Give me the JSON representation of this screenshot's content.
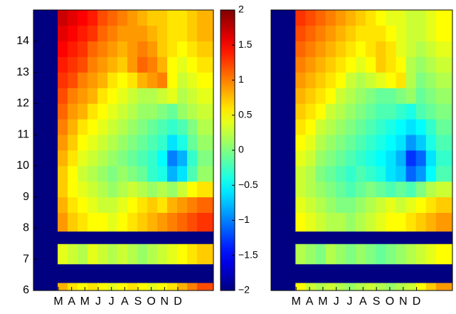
{
  "chart_data": [
    {
      "type": "heatmap",
      "colormap": "jet",
      "clim": [
        -2,
        2
      ],
      "xlim": [
        1.125,
        14.68
      ],
      "ylim": [
        6,
        15
      ],
      "xticks": [
        {
          "value": 3,
          "label": "M"
        },
        {
          "value": 4,
          "label": "A"
        },
        {
          "value": 5,
          "label": "M"
        },
        {
          "value": 6,
          "label": "J"
        },
        {
          "value": 7,
          "label": "J"
        },
        {
          "value": 8,
          "label": "A"
        },
        {
          "value": 9,
          "label": "S"
        },
        {
          "value": 10,
          "label": "O"
        },
        {
          "value": 11,
          "label": "N"
        },
        {
          "value": 12,
          "label": "D"
        }
      ],
      "yticks": [
        6,
        7,
        8,
        9,
        10,
        11,
        12,
        13,
        14
      ],
      "x_edges": [
        1.125,
        2.95,
        3.7,
        4.45,
        5.2,
        5.95,
        6.7,
        7.45,
        8.2,
        8.95,
        9.7,
        10.45,
        11.2,
        11.95,
        12.7,
        13.45,
        14.68
      ],
      "y_edges": [
        6,
        6.25,
        6.85,
        7.5,
        7.9,
        8.5,
        9,
        9.5,
        10,
        10.5,
        11,
        11.5,
        12,
        12.5,
        13,
        13.5,
        14,
        14.5,
        15
      ],
      "z": [
        [
          -2,
          0.8,
          0.6,
          0.5,
          0.6,
          0.5,
          0.4,
          0.5,
          0.6,
          0.5,
          0.4,
          0.5,
          0.6,
          0.8,
          1.0,
          1.2
        ],
        [
          -2,
          -2,
          -2,
          -2,
          -2,
          -2,
          -2,
          -2,
          -2,
          -2,
          -2,
          -2,
          -2,
          -2,
          -2,
          -2
        ],
        [
          -2,
          0.4,
          0.3,
          0.2,
          0.4,
          0.3,
          0.2,
          0.3,
          0.2,
          0.1,
          0.2,
          0.3,
          0.4,
          0.5,
          0.6,
          0.7
        ],
        [
          -2,
          -2,
          -2,
          -2,
          -2,
          -2,
          -2,
          -2,
          -2,
          -2,
          -2,
          -2,
          -2,
          -2,
          -2,
          -2
        ],
        [
          -2,
          0.9,
          0.7,
          0.6,
          0.5,
          0.5,
          0.4,
          0.5,
          0.6,
          0.7,
          0.8,
          0.9,
          1.0,
          1.1,
          1.2,
          1.3
        ],
        [
          -2,
          0.8,
          0.6,
          0.5,
          0.4,
          0.3,
          0.3,
          0.4,
          0.5,
          0.6,
          0.7,
          0.6,
          0.8,
          0.9,
          1.0,
          1.1
        ],
        [
          -2,
          0.7,
          0.5,
          0.4,
          0.3,
          0.2,
          0.1,
          0.2,
          0.3,
          0.2,
          0.1,
          0.2,
          0.1,
          0.3,
          0.5,
          0.6
        ],
        [
          -2,
          0.7,
          0.5,
          0.3,
          0.2,
          0.1,
          0.0,
          0.1,
          0.0,
          -0.1,
          -0.3,
          -0.4,
          -0.8,
          -0.6,
          -0.2,
          0.1
        ],
        [
          -2,
          0.8,
          0.6,
          0.4,
          0.3,
          0.2,
          0.1,
          0.0,
          -0.1,
          -0.2,
          -0.3,
          -0.5,
          -1.0,
          -0.8,
          -0.3,
          0.0
        ],
        [
          -2,
          0.9,
          0.7,
          0.5,
          0.4,
          0.3,
          0.2,
          0.1,
          0.0,
          -0.1,
          -0.2,
          -0.3,
          -0.6,
          -0.4,
          -0.1,
          0.1
        ],
        [
          -2,
          1.0,
          0.8,
          0.6,
          0.5,
          0.4,
          0.3,
          0.2,
          0.1,
          0.0,
          -0.1,
          -0.2,
          -0.3,
          -0.2,
          0.0,
          0.2
        ],
        [
          -2,
          1.1,
          0.9,
          0.8,
          0.6,
          0.5,
          0.4,
          0.3,
          0.2,
          0.1,
          0.1,
          0.0,
          -0.1,
          0.1,
          0.2,
          0.3
        ],
        [
          -2,
          1.2,
          1.0,
          0.9,
          0.8,
          0.6,
          0.5,
          0.4,
          0.3,
          0.2,
          0.2,
          0.3,
          0.4,
          0.2,
          0.3,
          0.4
        ],
        [
          -2,
          1.3,
          1.2,
          1.0,
          0.9,
          0.8,
          0.6,
          0.5,
          0.6,
          0.8,
          0.9,
          1.0,
          0.5,
          0.3,
          0.4,
          0.5
        ],
        [
          -2,
          1.4,
          1.3,
          1.2,
          1.0,
          0.9,
          0.8,
          0.7,
          0.9,
          1.1,
          1.0,
          0.8,
          0.5,
          0.4,
          0.5,
          0.6
        ],
        [
          -2,
          1.5,
          1.4,
          1.3,
          1.1,
          1.0,
          0.9,
          0.8,
          0.9,
          1.0,
          0.9,
          0.7,
          0.6,
          0.5,
          0.6,
          0.7
        ],
        [
          -2,
          1.6,
          1.5,
          1.4,
          1.3,
          1.1,
          1.0,
          0.9,
          0.9,
          0.9,
          0.8,
          0.7,
          0.6,
          0.6,
          0.7,
          0.8
        ],
        [
          -2,
          1.7,
          1.6,
          1.5,
          1.4,
          1.2,
          1.1,
          1.0,
          0.9,
          0.8,
          0.7,
          0.7,
          0.6,
          0.6,
          0.7,
          0.8
        ]
      ],
      "colorbar": {
        "ticks": [
          {
            "value": -2,
            "label": "−2"
          },
          {
            "value": -1.5,
            "label": "−1.5"
          },
          {
            "value": -1,
            "label": "−1"
          },
          {
            "value": -0.5,
            "label": "−0.5"
          },
          0,
          0.5,
          1,
          1.5,
          2
        ]
      }
    },
    {
      "type": "heatmap",
      "colormap": "jet",
      "clim": [
        -2,
        2
      ],
      "xlim": [
        1.125,
        14.68
      ],
      "ylim": [
        6,
        15
      ],
      "xticks": [
        {
          "value": 3,
          "label": "M"
        },
        {
          "value": 4,
          "label": "A"
        },
        {
          "value": 5,
          "label": "M"
        },
        {
          "value": 6,
          "label": "J"
        },
        {
          "value": 7,
          "label": "J"
        },
        {
          "value": 8,
          "label": "A"
        },
        {
          "value": 9,
          "label": "S"
        },
        {
          "value": 10,
          "label": "O"
        },
        {
          "value": 11,
          "label": "N"
        },
        {
          "value": 12,
          "label": "D"
        }
      ],
      "x_edges": [
        1.125,
        2.95,
        3.7,
        4.45,
        5.2,
        5.95,
        6.7,
        7.45,
        8.2,
        8.95,
        9.7,
        10.45,
        11.2,
        11.95,
        12.7,
        13.45,
        14.68
      ],
      "y_edges": [
        6,
        6.25,
        6.85,
        7.5,
        7.9,
        8.5,
        9,
        9.5,
        10,
        10.5,
        11,
        11.5,
        12,
        12.5,
        13,
        13.5,
        14,
        14.5,
        15
      ],
      "z": [
        [
          -2,
          0.5,
          0.3,
          0.2,
          0.3,
          0.2,
          0.1,
          0.2,
          0.3,
          0.2,
          0.1,
          0.2,
          0.3,
          0.5,
          0.7,
          0.9
        ],
        [
          -2,
          -2,
          -2,
          -2,
          -2,
          -2,
          -2,
          -2,
          -2,
          -2,
          -2,
          -2,
          -2,
          -2,
          -2,
          -2
        ],
        [
          -2,
          0.2,
          0.1,
          0.0,
          0.2,
          0.1,
          0.0,
          0.1,
          0.0,
          -0.1,
          0.0,
          0.1,
          0.2,
          0.3,
          0.4,
          0.5
        ],
        [
          -2,
          -2,
          -2,
          -2,
          -2,
          -2,
          -2,
          -2,
          -2,
          -2,
          -2,
          -2,
          -2,
          -2,
          -2,
          -2
        ],
        [
          -2,
          0.5,
          0.4,
          0.3,
          0.2,
          0.2,
          0.1,
          0.2,
          0.3,
          0.4,
          0.5,
          0.5,
          0.6,
          0.7,
          0.8,
          0.9
        ],
        [
          -2,
          0.4,
          0.3,
          0.2,
          0.1,
          0.0,
          0.0,
          0.1,
          0.2,
          0.3,
          0.4,
          0.3,
          0.4,
          0.5,
          0.6,
          0.7
        ],
        [
          -2,
          0.3,
          0.2,
          0.1,
          0.0,
          -0.1,
          -0.2,
          -0.1,
          0.0,
          -0.1,
          -0.2,
          -0.1,
          -0.2,
          0.0,
          0.2,
          0.3
        ],
        [
          -2,
          0.3,
          0.2,
          0.0,
          -0.1,
          -0.2,
          -0.3,
          -0.2,
          -0.3,
          -0.4,
          -0.6,
          -0.7,
          -1.1,
          -0.9,
          -0.5,
          -0.2
        ],
        [
          -2,
          0.4,
          0.3,
          0.1,
          0.0,
          -0.1,
          -0.2,
          -0.3,
          -0.4,
          -0.5,
          -0.6,
          -0.8,
          -1.3,
          -1.1,
          -0.6,
          -0.3
        ],
        [
          -2,
          0.5,
          0.4,
          0.2,
          0.1,
          0.0,
          -0.1,
          -0.2,
          -0.3,
          -0.4,
          -0.5,
          -0.6,
          -0.9,
          -0.7,
          -0.4,
          -0.2
        ],
        [
          -2,
          0.6,
          0.5,
          0.3,
          0.2,
          0.1,
          0.0,
          -0.1,
          -0.2,
          -0.3,
          -0.4,
          -0.5,
          -0.6,
          -0.5,
          -0.3,
          -0.1
        ],
        [
          -2,
          0.7,
          0.6,
          0.5,
          0.3,
          0.2,
          0.1,
          0.0,
          -0.1,
          -0.2,
          -0.2,
          -0.3,
          -0.4,
          -0.2,
          -0.1,
          0.0
        ],
        [
          -2,
          0.8,
          0.7,
          0.6,
          0.5,
          0.3,
          0.2,
          0.1,
          0.0,
          -0.1,
          -0.1,
          0.0,
          0.1,
          -0.1,
          0.0,
          0.1
        ],
        [
          -2,
          0.9,
          0.8,
          0.7,
          0.6,
          0.5,
          0.3,
          0.2,
          0.3,
          0.4,
          0.5,
          0.6,
          0.2,
          0.0,
          0.1,
          0.2
        ],
        [
          -2,
          1.0,
          0.9,
          0.8,
          0.7,
          0.6,
          0.5,
          0.4,
          0.5,
          0.7,
          0.6,
          0.5,
          0.2,
          0.1,
          0.2,
          0.3
        ],
        [
          -2,
          1.1,
          1.0,
          0.9,
          0.8,
          0.7,
          0.6,
          0.5,
          0.6,
          0.7,
          0.6,
          0.4,
          0.3,
          0.2,
          0.3,
          0.4
        ],
        [
          -2,
          1.2,
          1.1,
          1.0,
          0.9,
          0.8,
          0.7,
          0.6,
          0.6,
          0.6,
          0.5,
          0.4,
          0.3,
          0.3,
          0.4,
          0.5
        ],
        [
          -2,
          1.3,
          1.2,
          1.1,
          1.0,
          0.9,
          0.8,
          0.7,
          0.6,
          0.5,
          0.4,
          0.4,
          0.3,
          0.3,
          0.4,
          0.5
        ]
      ]
    }
  ]
}
